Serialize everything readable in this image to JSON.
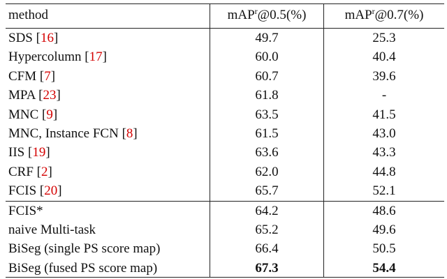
{
  "table": {
    "header": [
      {
        "text": "method"
      },
      {
        "text": "mAP",
        "sup": "r",
        "rest": "@0.5(%)"
      },
      {
        "text": "mAP",
        "sup": "r",
        "rest": "@0.7(%)"
      }
    ],
    "groups": [
      [
        {
          "method": "SDS ",
          "ref": [
            "[",
            "16",
            "]"
          ],
          "values": [
            "49.7",
            "25.3"
          ]
        },
        {
          "method": "Hypercolumn ",
          "ref": [
            "[",
            "17",
            "]"
          ],
          "values": [
            "60.0",
            "40.4"
          ]
        },
        {
          "method": "CFM ",
          "ref": [
            "[",
            "7",
            "]"
          ],
          "values": [
            "60.7",
            "39.6"
          ]
        },
        {
          "method": "MPA ",
          "ref": [
            "[",
            "23",
            "]"
          ],
          "values": [
            "61.8",
            "-"
          ]
        },
        {
          "method": "MNC ",
          "ref": [
            "[",
            "9",
            "]"
          ],
          "values": [
            "63.5",
            "41.5"
          ]
        },
        {
          "method": "MNC, Instance FCN ",
          "ref": [
            "[",
            "8",
            "]"
          ],
          "values": [
            "61.5",
            "43.0"
          ]
        },
        {
          "method": "IIS ",
          "ref": [
            "[",
            "19",
            "]"
          ],
          "values": [
            "63.6",
            "43.3"
          ]
        },
        {
          "method": "CRF ",
          "ref": [
            "[",
            "2",
            "]"
          ],
          "values": [
            "62.0",
            "44.8"
          ]
        },
        {
          "method": "FCIS ",
          "ref": [
            "[",
            "20",
            "]"
          ],
          "values": [
            "65.7",
            "52.1"
          ]
        }
      ],
      [
        {
          "method": "FCIS*",
          "values": [
            "64.2",
            "48.6"
          ]
        },
        {
          "method": "naive Multi-task",
          "values": [
            "65.2",
            "49.6"
          ]
        },
        {
          "method": "BiSeg (single PS score map)",
          "values": [
            "66.4",
            "50.5"
          ]
        },
        {
          "method": "BiSeg (fused PS score map)",
          "values": [
            "67.3",
            "54.4"
          ],
          "bold": true
        }
      ]
    ]
  }
}
